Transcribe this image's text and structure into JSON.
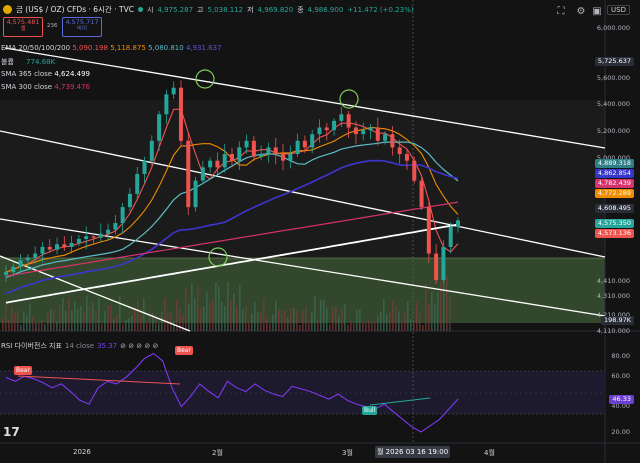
{
  "symbol": {
    "title": "금 (US$ / OZ) CFDs · 6시간 · TVC",
    "open_label": "시",
    "open": "4,975.287",
    "high_label": "고",
    "high": "5,038.112",
    "low_label": "저",
    "low": "4,969.820",
    "close_label": "종",
    "close": "4,986.900",
    "change": "+11.472 (+0.23%)"
  },
  "trade": {
    "sell_price": "4,575.481",
    "sell_label": "셀",
    "spread": "236",
    "buy_price": "4,575.717",
    "buy_label": "바이"
  },
  "currency": "USD",
  "indicators": {
    "ema_label": "EMA 20/50/100/200",
    "ema_values": [
      "5,090.198",
      "5,118.875",
      "5,080.810",
      "4,931.637"
    ],
    "volume_label": "볼륨",
    "volume_value": "774.68K",
    "sma365_label": "SMA 365 close",
    "sma365_value": "4,624.499",
    "sma300_label": "SMA 300 close",
    "sma300_value": "4,739.476",
    "rsi_label": "RSI 다이버전스 지표",
    "rsi_param": "14 close",
    "rsi_value": "35.37"
  },
  "price_axis": {
    "ticks": [
      "6,000.000",
      "5,800.000",
      "5,600.000",
      "5,400.000",
      "5,200.000",
      "5,000.000",
      "4,410.000",
      "4,310.000",
      "4,210.000",
      "4,110.000"
    ],
    "tags": [
      {
        "text": "5,725.637",
        "color": "#2a2e39"
      },
      {
        "text": "4,889.318",
        "color": "#2f7f86"
      },
      {
        "text": "4,862.854",
        "color": "#3636c9"
      },
      {
        "text": "4,782.439",
        "color": "#d6336c"
      },
      {
        "text": "4,772.289",
        "color": "#f08c00"
      },
      {
        "text": "4,608.495",
        "color": "#2a2e39"
      },
      {
        "text": "4,575.350",
        "color": "#26a69a"
      },
      {
        "text": "4,573.136",
        "color": "#ef5350"
      },
      {
        "text": "198.97K",
        "color": "#2a2e39"
      }
    ]
  },
  "rsi_axis": {
    "ticks": [
      "80.00",
      "60.00",
      "40.00",
      "20.00"
    ],
    "value_tag": "46.33"
  },
  "time_axis": {
    "labels": [
      "2026",
      "2월",
      "3월",
      "4월"
    ],
    "cursor_label": "월 2026 03 16  19:00"
  },
  "rsi_signals": {
    "bear1": "Bear",
    "bear2": "Bear",
    "bull": "Bull"
  },
  "logo_text": "17",
  "colors": {
    "ema20": "#ef5350",
    "ema50": "#f08c00",
    "ema100": "#5bbcc4",
    "ema200": "#3d35d0",
    "sma365": "#ffffff",
    "sma300": "#d6336c",
    "up": "#26a69a",
    "down": "#ef5350",
    "rsi": "#7b39f0",
    "bear": "#ef5350",
    "bull": "#26a69a"
  },
  "chart_data": {
    "type": "candlestick",
    "y_range": [
      4000,
      6050
    ],
    "ohlc_close_path": [
      4210,
      4250,
      4300,
      4320,
      4350,
      4400,
      4380,
      4420,
      4400,
      4430,
      4460,
      4480,
      4470,
      4500,
      4530,
      4580,
      4700,
      4800,
      4950,
      5050,
      5200,
      5400,
      5550,
      5600,
      5200,
      4700,
      4900,
      5000,
      5050,
      5000,
      5100,
      5050,
      5150,
      5200,
      5080,
      5100,
      5150,
      5100,
      5050,
      5100,
      5200,
      5150,
      5250,
      5300,
      5280,
      5350,
      5400,
      5300,
      5250,
      5280,
      5300,
      5200,
      5250,
      5150,
      5100,
      5050,
      4900,
      4700,
      4350,
      4150,
      4400,
      4550,
      4600
    ],
    "rsi_path": [
      63,
      60,
      64,
      62,
      59,
      55,
      58,
      52,
      45,
      42,
      55,
      60,
      58,
      63,
      70,
      78,
      82,
      76,
      55,
      40,
      48,
      58,
      52,
      47,
      60,
      55,
      52,
      58,
      53,
      50,
      48,
      56,
      54,
      52,
      49,
      46,
      50,
      45,
      42,
      40,
      38,
      42,
      36,
      30,
      24,
      20,
      25,
      30,
      38,
      46
    ],
    "volume_label": "774.68K"
  }
}
